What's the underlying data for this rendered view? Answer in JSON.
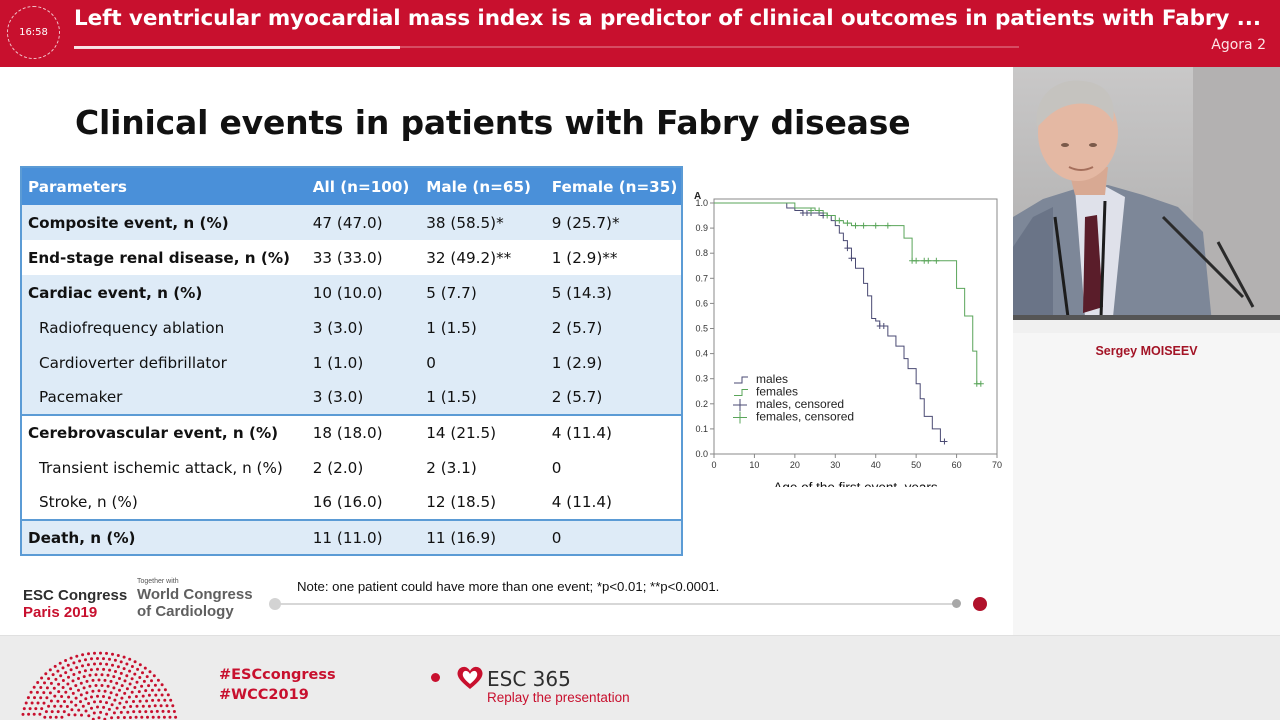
{
  "header": {
    "time": "16:58",
    "title": "Left ventricular myocardial mass index is a predictor of clinical outcomes in patients with Fabry ...",
    "room": "Agora 2",
    "progress_fraction": 0.345
  },
  "slide": {
    "title": "Clinical events in patients with Fabry disease",
    "table": {
      "headers": [
        "Parameters",
        "All (n=100)",
        "Male (n=65)",
        "Female (n=35)"
      ],
      "rows": [
        {
          "cells": [
            "Composite event, n (%)",
            "47 (47.0)",
            "38 (58.5)*",
            "9 (25.7)*"
          ],
          "bold": true,
          "shade": true,
          "sub": false,
          "sep": false
        },
        {
          "cells": [
            "End-stage renal disease, n (%)",
            "33 (33.0)",
            "32 (49.2)**",
            "1 (2.9)**"
          ],
          "bold": true,
          "shade": false,
          "sub": false,
          "sep": false
        },
        {
          "cells": [
            "Cardiac event, n (%)",
            "10 (10.0)",
            "5 (7.7)",
            "5 (14.3)"
          ],
          "bold": true,
          "shade": true,
          "sub": false,
          "sep": false
        },
        {
          "cells": [
            "Radiofrequency ablation",
            "3 (3.0)",
            "1 (1.5)",
            "2 (5.7)"
          ],
          "bold": false,
          "shade": true,
          "sub": true,
          "sep": false
        },
        {
          "cells": [
            "Cardioverter defibrillator",
            "1 (1.0)",
            "0",
            "1 (2.9)"
          ],
          "bold": false,
          "shade": true,
          "sub": true,
          "sep": false
        },
        {
          "cells": [
            "Pacemaker",
            "3 (3.0)",
            "1 (1.5)",
            "2 (5.7)"
          ],
          "bold": false,
          "shade": true,
          "sub": true,
          "sep": false
        },
        {
          "cells": [
            "Cerebrovascular event, n (%)",
            "18 (18.0)",
            "14 (21.5)",
            "4 (11.4)"
          ],
          "bold": true,
          "shade": false,
          "sub": false,
          "sep": true
        },
        {
          "cells": [
            "Transient ischemic attack, n (%)",
            "2 (2.0)",
            "2 (3.1)",
            "0"
          ],
          "bold": false,
          "shade": false,
          "sub": true,
          "sep": false
        },
        {
          "cells": [
            "Stroke, n (%)",
            "16 (16.0)",
            "12 (18.5)",
            "4 (11.4)"
          ],
          "bold": false,
          "shade": false,
          "sub": true,
          "sep": false
        },
        {
          "cells": [
            "Death, n (%)",
            "11 (11.0)",
            "11 (16.9)",
            "0"
          ],
          "bold": true,
          "shade": true,
          "sub": false,
          "sep": true
        }
      ]
    },
    "note": "Note: one patient could have more than one event; *p<0.01; **p<0.0001.",
    "logos": {
      "esc_line1": "ESC Congress",
      "esc_line2": "Paris 2019",
      "wcc_together": "Together with",
      "wcc_line1": "World Congress",
      "wcc_line2": "of Cardiology"
    }
  },
  "chart_data": {
    "type": "line",
    "title": "A",
    "xlabel": "Age of the first event, years",
    "ylabel": "",
    "xlim": [
      0,
      70
    ],
    "ylim": [
      0,
      1
    ],
    "xticks": [
      0,
      10,
      20,
      30,
      40,
      50,
      60,
      70
    ],
    "yticks": [
      0.0,
      0.1,
      0.2,
      0.3,
      0.4,
      0.5,
      0.6,
      0.7,
      0.8,
      0.9,
      1.0
    ],
    "step": true,
    "grid": false,
    "legend_position": "bottom-left",
    "legend": [
      "males",
      "females",
      "males, censored",
      "females, censored"
    ],
    "series": [
      {
        "name": "males",
        "color": "#4a4a73",
        "x": [
          0,
          17,
          18,
          20,
          22,
          25,
          28,
          29,
          30,
          31,
          32,
          33,
          34,
          35,
          37,
          38,
          39,
          40,
          41,
          43,
          45,
          47,
          48,
          50,
          51,
          52,
          54,
          56,
          57
        ],
        "y": [
          1.0,
          1.0,
          0.98,
          0.97,
          0.96,
          0.96,
          0.95,
          0.93,
          0.91,
          0.88,
          0.85,
          0.82,
          0.78,
          0.74,
          0.68,
          0.63,
          0.54,
          0.53,
          0.51,
          0.47,
          0.43,
          0.38,
          0.34,
          0.28,
          0.22,
          0.15,
          0.1,
          0.05,
          0.05
        ]
      },
      {
        "name": "females",
        "color": "#5aa55a",
        "x": [
          0,
          17,
          20,
          25,
          27,
          28,
          30,
          32,
          34,
          40,
          45,
          47,
          49,
          55,
          60,
          62,
          64,
          65,
          66
        ],
        "y": [
          1.0,
          1.0,
          0.98,
          0.97,
          0.96,
          0.95,
          0.93,
          0.92,
          0.91,
          0.91,
          0.91,
          0.86,
          0.77,
          0.77,
          0.66,
          0.55,
          0.41,
          0.28,
          0.28
        ]
      }
    ],
    "censored": {
      "males": {
        "x": [
          22,
          23,
          24,
          26,
          27,
          33,
          34,
          41,
          42,
          57
        ],
        "y": [
          0.96,
          0.96,
          0.96,
          0.96,
          0.95,
          0.82,
          0.78,
          0.51,
          0.51,
          0.05
        ]
      },
      "females": {
        "x": [
          24,
          26,
          28,
          31,
          33,
          35,
          37,
          40,
          43,
          49,
          50,
          52,
          53,
          55,
          65,
          66
        ],
        "y": [
          0.97,
          0.97,
          0.95,
          0.93,
          0.92,
          0.91,
          0.91,
          0.91,
          0.91,
          0.77,
          0.77,
          0.77,
          0.77,
          0.77,
          0.28,
          0.28
        ]
      }
    }
  },
  "speaker": {
    "name": "Sergey MOISEEV"
  },
  "footer": {
    "hashtag1": "#ESCcongress",
    "hashtag2": "#WCC2019",
    "esc365": "ESC 365",
    "replay": "Replay the presentation"
  }
}
